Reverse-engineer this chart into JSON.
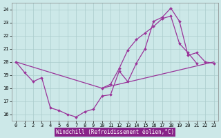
{
  "background_color": "#cce8e8",
  "grid_color": "#aacccc",
  "line_color": "#993399",
  "xlabel": "Windchill (Refroidissement éolien,°C)",
  "xlim": [
    -0.5,
    23.5
  ],
  "ylim": [
    15.5,
    24.5
  ],
  "yticks": [
    16,
    17,
    18,
    19,
    20,
    21,
    22,
    23,
    24
  ],
  "xticks": [
    0,
    1,
    2,
    3,
    4,
    5,
    6,
    7,
    8,
    9,
    10,
    11,
    12,
    13,
    14,
    15,
    16,
    17,
    18,
    19,
    20,
    21,
    22,
    23
  ],
  "series1": {
    "x": [
      0,
      1,
      2,
      3,
      4,
      5,
      6,
      7,
      8,
      9,
      10,
      11,
      12,
      13,
      14,
      15,
      16,
      17,
      18,
      19,
      20,
      21,
      22,
      23
    ],
    "y": [
      20.0,
      19.2,
      18.5,
      18.8,
      16.5,
      16.3,
      16.0,
      15.8,
      16.2,
      16.4,
      17.4,
      17.5,
      19.3,
      18.5,
      19.9,
      21.0,
      23.1,
      23.4,
      24.1,
      23.1,
      20.5,
      20.7,
      20.0,
      19.9
    ]
  },
  "series2": {
    "x": [
      0,
      10,
      23
    ],
    "y": [
      20.0,
      18.0,
      20.0
    ]
  },
  "series3": {
    "x": [
      10,
      11,
      12,
      13,
      14,
      15,
      16,
      17,
      18,
      19,
      20,
      21,
      22,
      23
    ],
    "y": [
      18.0,
      18.3,
      19.5,
      20.9,
      21.7,
      22.2,
      22.7,
      23.3,
      23.5,
      21.4,
      20.7,
      19.9,
      null,
      null
    ]
  },
  "xlabel_bg": "#882288",
  "xlabel_color": "white",
  "xlabel_fontsize": 5.5,
  "tick_fontsize": 5.0,
  "marker": "D",
  "markersize": 2.0,
  "linewidth": 0.9
}
